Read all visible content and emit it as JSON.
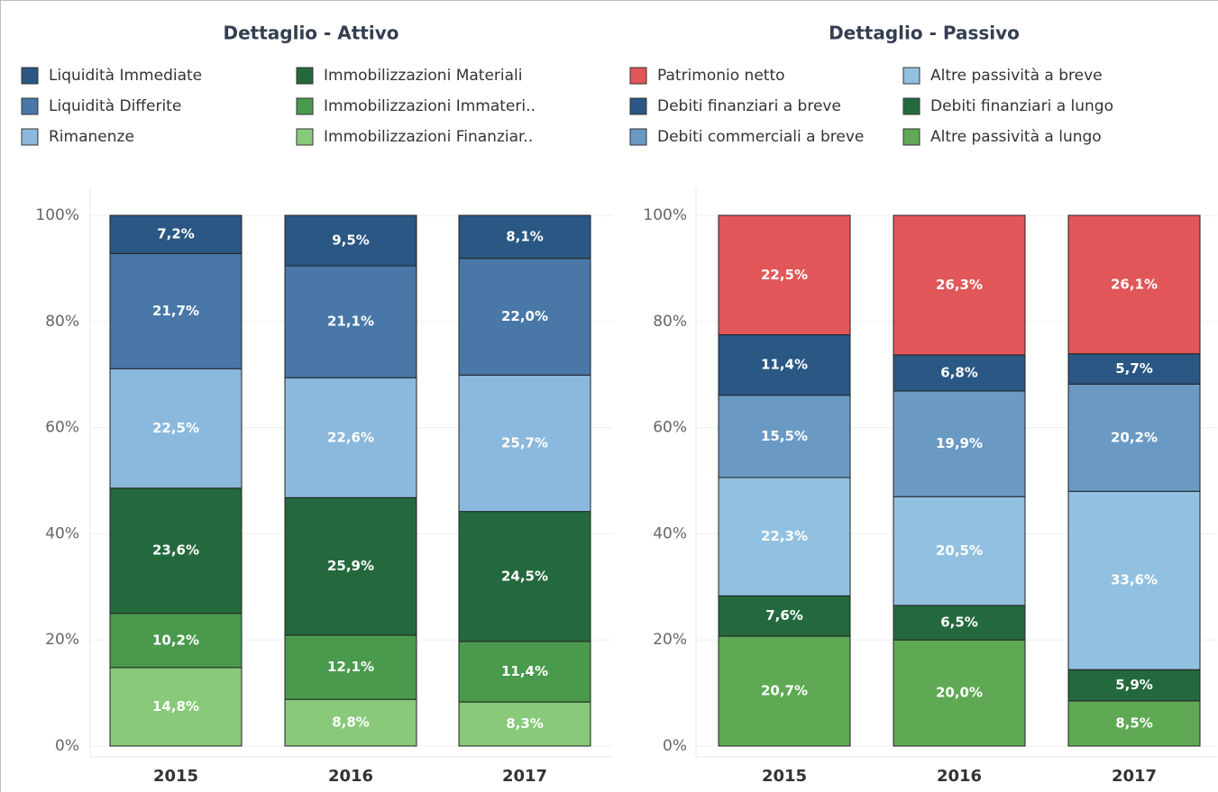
{
  "chart_data": [
    {
      "type": "stacked_bar",
      "title": "Dettaglio - Attivo",
      "categories": [
        "2015",
        "2016",
        "2017"
      ],
      "series": [
        {
          "name": "Liquidità Immediate",
          "color": "#2a5783",
          "values": [
            7.2,
            9.5,
            8.1
          ],
          "value_labels": [
            "7,2%",
            "9,5%",
            "8,1%"
          ]
        },
        {
          "name": "Liquidità Differite",
          "color": "#4877a8",
          "values": [
            21.7,
            21.1,
            22.0
          ],
          "value_labels": [
            "21,7%",
            "21,1%",
            "22,0%"
          ]
        },
        {
          "name": "Rimanenze",
          "color": "#8bb8dd",
          "values": [
            22.5,
            22.6,
            25.7
          ],
          "value_labels": [
            "22,5%",
            "22,6%",
            "25,7%"
          ]
        },
        {
          "name": "Immobilizzazioni Materiali",
          "color": "#24693d",
          "values": [
            23.6,
            25.9,
            24.5
          ],
          "value_labels": [
            "23,6%",
            "25,9%",
            "24,5%"
          ]
        },
        {
          "name": "Immobilizzazioni Immateri..",
          "color": "#4a9a4e",
          "values": [
            10.2,
            12.1,
            11.4
          ],
          "value_labels": [
            "10,2%",
            "12,1%",
            "11,4%"
          ]
        },
        {
          "name": "Immobilizzazioni Finanziar..",
          "color": "#88c97a",
          "values": [
            14.8,
            8.8,
            8.3
          ],
          "value_labels": [
            "14,8%",
            "8,8%",
            "8,3%"
          ]
        }
      ],
      "ylim": [
        0,
        100
      ],
      "yticks": [
        {
          "value": 0,
          "label": "0%"
        },
        {
          "value": 20,
          "label": "20%"
        },
        {
          "value": 40,
          "label": "40%"
        },
        {
          "value": 60,
          "label": "60%"
        },
        {
          "value": 80,
          "label": "80%"
        },
        {
          "value": 100,
          "label": "100%"
        }
      ],
      "grid": true
    },
    {
      "type": "stacked_bar",
      "title": "Dettaglio - Passivo",
      "categories": [
        "2015",
        "2016",
        "2017"
      ],
      "series": [
        {
          "name": "Patrimonio netto",
          "color": "#e15759",
          "values": [
            22.5,
            26.3,
            26.1
          ],
          "value_labels": [
            "22,5%",
            "26,3%",
            "26,1%"
          ]
        },
        {
          "name": "Debiti finanziari a breve",
          "color": "#2a5783",
          "values": [
            11.4,
            6.8,
            5.7
          ],
          "value_labels": [
            "11,4%",
            "6,8%",
            "5,7%"
          ]
        },
        {
          "name": "Debiti commerciali a breve",
          "color": "#6a9ac4",
          "values": [
            15.5,
            19.9,
            20.2
          ],
          "value_labels": [
            "15,5%",
            "19,9%",
            "20,2%"
          ]
        },
        {
          "name": "Altre passività a breve",
          "color": "#92c0e0",
          "values": [
            22.3,
            20.5,
            33.6
          ],
          "value_labels": [
            "22,3%",
            "20,5%",
            "33,6%"
          ]
        },
        {
          "name": "Debiti finanziari a lungo",
          "color": "#24693d",
          "values": [
            7.6,
            6.5,
            5.9
          ],
          "value_labels": [
            "7,6%",
            "6,5%",
            "5,9%"
          ]
        },
        {
          "name": "Altre passività a lungo",
          "color": "#5fa954",
          "values": [
            20.7,
            20.0,
            8.5
          ],
          "value_labels": [
            "20,7%",
            "20,0%",
            "8,5%"
          ]
        }
      ],
      "ylim": [
        0,
        100
      ],
      "yticks": [
        {
          "value": 0,
          "label": "0%"
        },
        {
          "value": 20,
          "label": "20%"
        },
        {
          "value": 40,
          "label": "40%"
        },
        {
          "value": 60,
          "label": "60%"
        },
        {
          "value": 80,
          "label": "80%"
        },
        {
          "value": 100,
          "label": "100%"
        }
      ],
      "grid": true
    }
  ]
}
